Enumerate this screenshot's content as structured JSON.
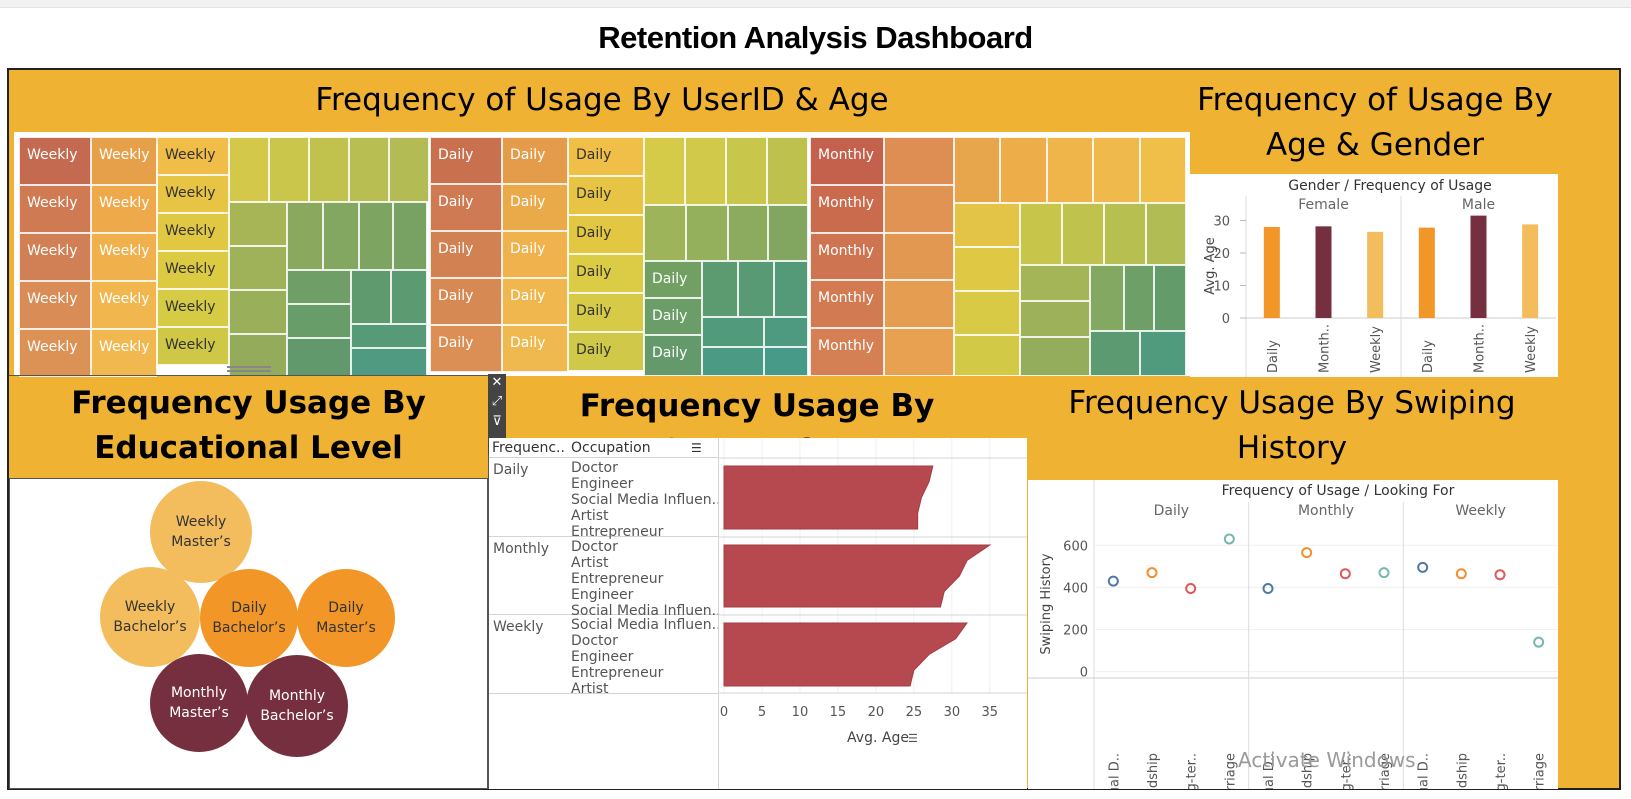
{
  "dashboard": {
    "title": "Retention Analysis Dashboard"
  },
  "panels": {
    "userid_age": {
      "title": "Frequency of Usage By UserID & Age"
    },
    "age_gender": {
      "title_line1": "Frequency of Usage By",
      "title_line2": "Age & Gender"
    },
    "education": {
      "title_line1": "Frequency Usage By",
      "title_line2": "Educational Level"
    },
    "occupation": {
      "title": "Frequency Usage By Occupation"
    },
    "swiping": {
      "title_line1": "Frequency Usage By Swiping",
      "title_line2": "History"
    }
  },
  "treemap": {
    "weekly_label": "Weekly",
    "daily_label": "Daily",
    "monthly_label": "Monthly"
  },
  "icons": [
    "close-icon",
    "popout-icon",
    "filter-icon",
    "dropdown-icon",
    "sort-icon"
  ],
  "education_bubbles": [
    {
      "line1": "Weekly",
      "line2": "Master’s",
      "color": "#f3bd5e"
    },
    {
      "line1": "Weekly",
      "line2": "Bachelor’s",
      "color": "#f3bd5e"
    },
    {
      "line1": "Daily",
      "line2": "Bachelor’s",
      "color": "#f29627"
    },
    {
      "line1": "Daily",
      "line2": "Master’s",
      "color": "#f29627"
    },
    {
      "line1": "Monthly",
      "line2": "Master’s",
      "color": "#752f3e"
    },
    {
      "line1": "Monthly",
      "line2": "Bachelor’s",
      "color": "#752f3e"
    }
  ],
  "occupation_table": {
    "col1": "Frequenc..",
    "col2": "Occupation",
    "groups": [
      {
        "name": "Daily",
        "items": [
          "Doctor",
          "Engineer",
          "Social Media Influen..",
          "Artist",
          "Entrepreneur"
        ]
      },
      {
        "name": "Monthly",
        "items": [
          "Doctor",
          "Artist",
          "Entrepreneur",
          "Engineer",
          "Social Media Influen.."
        ]
      },
      {
        "name": "Weekly",
        "items": [
          "Social Media Influen..",
          "Doctor",
          "Engineer",
          "Entrepreneur",
          "Artist"
        ]
      }
    ]
  },
  "chart_data": [
    {
      "type": "bar",
      "title": "Gender / Frequency of Usage",
      "panels": [
        "Female",
        "Male"
      ],
      "categories": [
        "Daily",
        "Month..",
        "Weekly"
      ],
      "ylabel": "Avg. Age",
      "ylim": [
        0,
        32
      ],
      "yticks": [
        0,
        10,
        20,
        30
      ],
      "series": [
        {
          "name": "Female",
          "values": [
            28,
            28.2,
            26.5
          ]
        },
        {
          "name": "Male",
          "values": [
            27.8,
            31.5,
            28.8
          ]
        }
      ],
      "colors": [
        "#f29627",
        "#752f3e",
        "#f3bd5e"
      ]
    },
    {
      "type": "area",
      "xlabel": "Avg. Age",
      "xlim": [
        0,
        37
      ],
      "xticks": [
        0,
        5,
        10,
        15,
        20,
        25,
        30,
        35
      ],
      "color": "#b5494f",
      "series": [
        {
          "name": "Daily",
          "values": [
            27.5,
            27,
            26,
            25.5,
            25.5
          ]
        },
        {
          "name": "Monthly",
          "values": [
            35,
            32,
            31,
            29,
            28.5
          ]
        },
        {
          "name": "Weekly",
          "values": [
            32,
            30.5,
            27,
            25,
            24.5
          ]
        }
      ]
    },
    {
      "type": "scatter",
      "title": "Frequency of Usage / Looking For",
      "panels": [
        "Daily",
        "Monthly",
        "Weekly"
      ],
      "categories": [
        "Casual D..",
        "Friendship",
        "Long-ter..",
        "Marriage"
      ],
      "ylabel": "Swiping History",
      "ylim": [
        -30,
        720
      ],
      "yticks": [
        0,
        200,
        400,
        600
      ],
      "series": [
        {
          "name": "Daily",
          "values": [
            430,
            470,
            395,
            630
          ]
        },
        {
          "name": "Monthly",
          "values": [
            395,
            565,
            465,
            470
          ]
        },
        {
          "name": "Weekly",
          "values": [
            495,
            465,
            460,
            140
          ]
        }
      ],
      "colors": [
        "#4e79a7",
        "#f28e2b",
        "#e15759",
        "#76b7b2"
      ]
    }
  ],
  "watermark": "Activate Windows"
}
